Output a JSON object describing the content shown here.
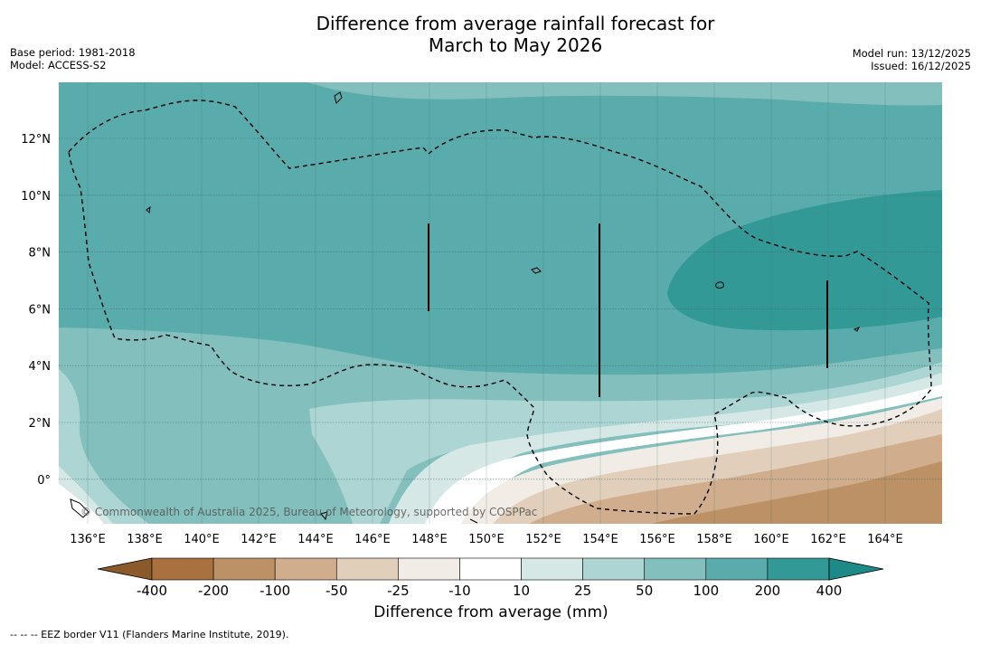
{
  "title": {
    "line1": "Difference from average rainfall forecast for",
    "line2": "March to May 2026"
  },
  "meta": {
    "base_period": "Base period: 1981-2018",
    "model": "Model: ACCESS-S2",
    "model_run": "Model run: 13/12/2025",
    "issued": "Issued: 16/12/2025"
  },
  "map": {
    "lat_ticks": [
      "12°N",
      "10°N",
      "8°N",
      "6°N",
      "4°N",
      "2°N",
      "0°"
    ],
    "lon_ticks": [
      "136°E",
      "138°E",
      "140°E",
      "142°E",
      "144°E",
      "146°E",
      "148°E",
      "150°E",
      "152°E",
      "154°E",
      "156°E",
      "158°E",
      "160°E",
      "162°E",
      "164°E"
    ],
    "copyright": "© Commonwealth of Australia 2025, Bureau of Meteorology, supported by COSPPac"
  },
  "colorbar": {
    "title": "Difference from average (mm)",
    "labels": [
      "-400",
      "-200",
      "-100",
      "-50",
      "-25",
      "-10",
      "10",
      "25",
      "50",
      "100",
      "200",
      "400"
    ],
    "colors": [
      "#a9713d",
      "#bd9166",
      "#d0ad8d",
      "#e2cfbb",
      "#f2ece6",
      "#ffffff",
      "#d5e8e6",
      "#acd5d3",
      "#82bfbd",
      "#5aabab",
      "#339996",
      "#1e8a87"
    ]
  },
  "footnote": "-- -- -- EEZ border V11 (Flanders Marine Institute, 2019)."
}
